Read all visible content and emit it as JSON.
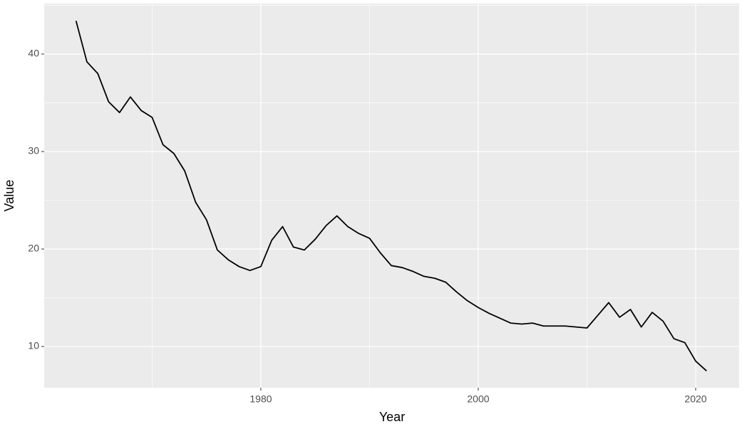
{
  "chart_data": {
    "type": "line",
    "x_label": "Year",
    "y_label": "Value",
    "x": [
      1963,
      1964,
      1965,
      1966,
      1967,
      1968,
      1969,
      1970,
      1971,
      1972,
      1973,
      1974,
      1975,
      1976,
      1977,
      1978,
      1979,
      1980,
      1981,
      1982,
      1983,
      1984,
      1985,
      1986,
      1987,
      1988,
      1989,
      1990,
      1991,
      1992,
      1993,
      1994,
      1995,
      1996,
      1997,
      1998,
      1999,
      2000,
      2001,
      2002,
      2003,
      2004,
      2005,
      2006,
      2007,
      2008,
      2009,
      2010,
      2011,
      2012,
      2013,
      2014,
      2015,
      2016,
      2017,
      2018,
      2019,
      2020,
      2021
    ],
    "values": [
      43.4,
      39.2,
      38.0,
      35.1,
      34.0,
      35.6,
      34.2,
      33.5,
      30.7,
      29.8,
      28.0,
      24.8,
      23.0,
      19.9,
      18.9,
      18.2,
      17.8,
      18.2,
      20.9,
      22.3,
      20.2,
      19.9,
      21.0,
      22.4,
      23.4,
      22.3,
      21.6,
      21.1,
      19.6,
      18.3,
      18.1,
      17.7,
      17.2,
      17.0,
      16.6,
      15.6,
      14.7,
      14.0,
      13.4,
      12.9,
      12.4,
      12.3,
      12.4,
      12.1,
      12.1,
      12.1,
      12.0,
      11.9,
      13.2,
      14.5,
      13.0,
      13.8,
      12.0,
      13.5,
      12.6,
      10.8,
      10.4,
      8.5,
      7.5
    ],
    "color": "#000000",
    "xlim": [
      1960.07,
      2024.0
    ],
    "ylim": [
      5.77,
      45.18
    ],
    "xticks": [
      1980,
      2000,
      2020
    ],
    "yticks": [
      10,
      20,
      30,
      40
    ],
    "minor_xticks": [
      1970,
      1990,
      2010
    ],
    "minor_yticks": [
      15,
      25,
      35,
      45
    ],
    "grid": true,
    "panel_color": "#ebebeb",
    "grid_color": "#ffffff"
  }
}
